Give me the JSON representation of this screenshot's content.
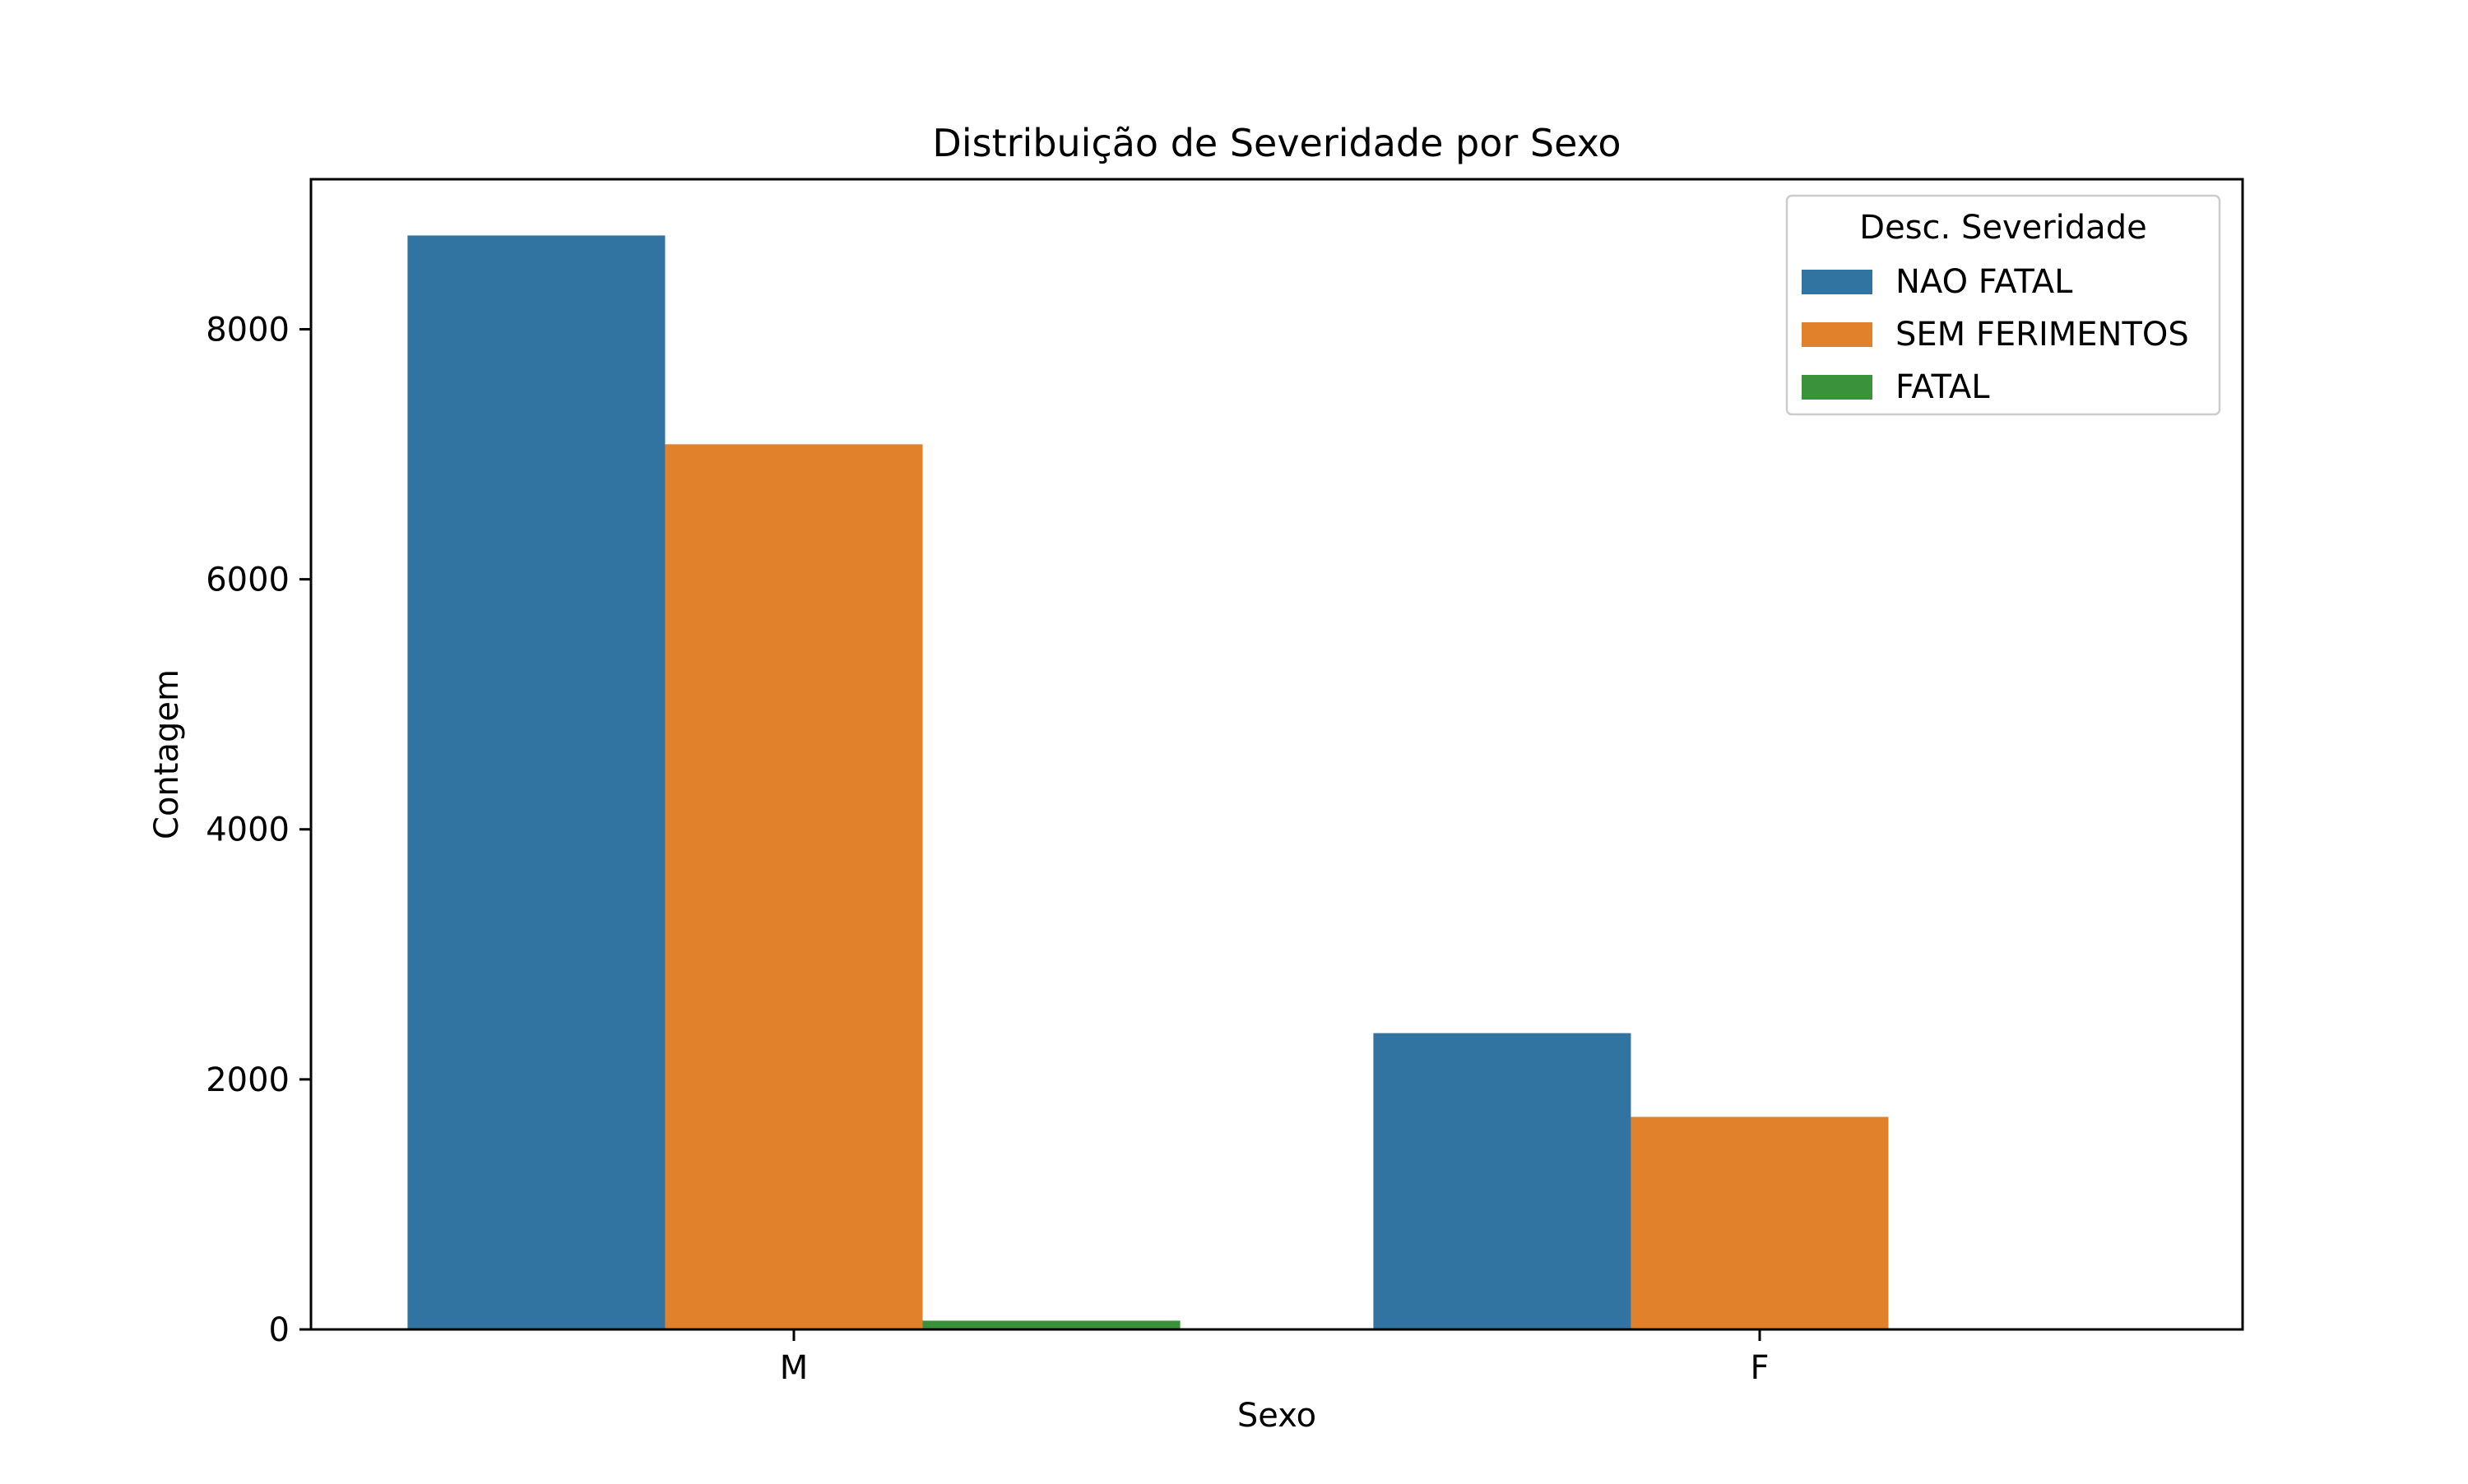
{
  "chart_data": {
    "type": "bar",
    "title": "Distribuição de Severidade por Sexo",
    "xlabel": "Sexo",
    "ylabel": "Contagem",
    "categories": [
      "M",
      "F"
    ],
    "series": [
      {
        "name": "NAO FATAL",
        "values": [
          8750,
          2370
        ],
        "color": "#3274a1"
      },
      {
        "name": "SEM FERIMENTOS",
        "values": [
          7080,
          1700
        ],
        "color": "#e1812c"
      },
      {
        "name": "FATAL",
        "values": [
          70,
          0
        ],
        "color": "#3a923a"
      }
    ],
    "ylim": [
      0,
      9200
    ],
    "yticks": [
      0,
      2000,
      4000,
      6000,
      8000
    ],
    "ytick_labels": [
      "0",
      "2000",
      "4000",
      "6000",
      "8000"
    ],
    "legend": {
      "title": "Desc. Severidade",
      "position": "top-right"
    },
    "grid": false
  }
}
